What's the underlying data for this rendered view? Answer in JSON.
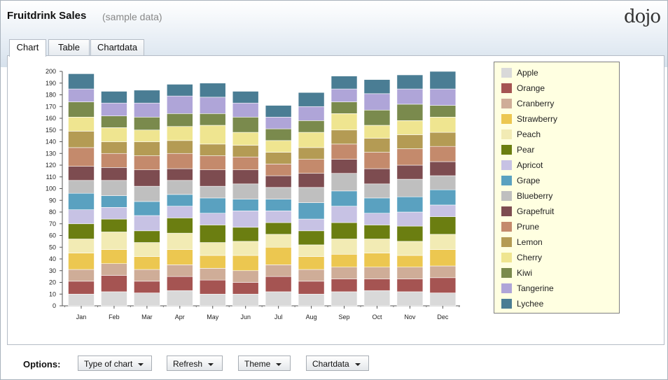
{
  "header": {
    "title": "Fruitdrink Sales",
    "subtitle": "(sample data)",
    "logo": "dojo"
  },
  "tabs": [
    {
      "label": "Chart",
      "active": true
    },
    {
      "label": "Table"
    },
    {
      "label": "Chartdata"
    }
  ],
  "options": {
    "label": "Options:",
    "buttons": [
      {
        "label": "Type of chart"
      },
      {
        "label": "Refresh"
      },
      {
        "label": "Theme"
      },
      {
        "label": "Chartdata"
      }
    ]
  },
  "chart_data": {
    "type": "bar",
    "stacked": true,
    "categories": [
      "Jan",
      "Feb",
      "Mar",
      "Apr",
      "May",
      "Jun",
      "Jul",
      "Aug",
      "Sep",
      "Oct",
      "Nov",
      "Dec"
    ],
    "ylim": [
      0,
      200
    ],
    "yticks": [
      0,
      10,
      20,
      30,
      40,
      50,
      60,
      70,
      80,
      90,
      100,
      110,
      120,
      130,
      140,
      150,
      160,
      170,
      180,
      190,
      200
    ],
    "legend_position": "right",
    "series": [
      {
        "name": "Apple",
        "color": "#d9d9d9",
        "values": [
          10,
          12,
          11,
          13,
          10,
          10,
          12,
          10,
          12,
          13,
          12,
          11
        ]
      },
      {
        "name": "Orange",
        "color": "#a55452",
        "values": [
          11,
          14,
          10,
          12,
          12,
          10,
          13,
          11,
          11,
          10,
          11,
          13
        ]
      },
      {
        "name": "Cranberry",
        "color": "#cfad98",
        "values": [
          10,
          10,
          10,
          10,
          10,
          10,
          10,
          10,
          10,
          10,
          10,
          10
        ]
      },
      {
        "name": "Strawberry",
        "color": "#ecc750",
        "values": [
          14,
          12,
          11,
          13,
          11,
          13,
          15,
          11,
          11,
          12,
          10,
          14
        ]
      },
      {
        "name": "Peach",
        "color": "#f2ebb4",
        "values": [
          12,
          15,
          12,
          14,
          11,
          12,
          11,
          10,
          13,
          12,
          12,
          13
        ]
      },
      {
        "name": "Pear",
        "color": "#6b7e11",
        "values": [
          13,
          11,
          10,
          13,
          15,
          12,
          10,
          12,
          14,
          12,
          13,
          15
        ]
      },
      {
        "name": "Apricot",
        "color": "#c7c2e4",
        "values": [
          12,
          10,
          13,
          10,
          10,
          14,
          10,
          10,
          14,
          10,
          12,
          10
        ]
      },
      {
        "name": "Grape",
        "color": "#5aa1c0",
        "values": [
          14,
          10,
          12,
          10,
          13,
          10,
          10,
          14,
          13,
          13,
          13,
          13
        ]
      },
      {
        "name": "Blueberry",
        "color": "#bfbfbf",
        "values": [
          11,
          13,
          13,
          12,
          10,
          13,
          10,
          13,
          15,
          12,
          15,
          12
        ]
      },
      {
        "name": "Grapefruit",
        "color": "#7d4c50",
        "values": [
          12,
          11,
          14,
          10,
          14,
          12,
          10,
          12,
          12,
          13,
          12,
          12
        ]
      },
      {
        "name": "Prune",
        "color": "#c48a6c",
        "values": [
          16,
          12,
          12,
          13,
          12,
          11,
          10,
          12,
          13,
          14,
          14,
          13
        ]
      },
      {
        "name": "Lemon",
        "color": "#b49b54",
        "values": [
          14,
          10,
          12,
          11,
          10,
          10,
          10,
          10,
          12,
          12,
          12,
          12
        ]
      },
      {
        "name": "Cherry",
        "color": "#efe590",
        "values": [
          12,
          12,
          10,
          12,
          16,
          11,
          10,
          13,
          14,
          11,
          12,
          13
        ]
      },
      {
        "name": "Kiwi",
        "color": "#7a8a4d",
        "values": [
          13,
          10,
          11,
          11,
          10,
          13,
          10,
          10,
          10,
          13,
          14,
          10
        ]
      },
      {
        "name": "Tangerine",
        "color": "#afa5d8",
        "values": [
          11,
          11,
          12,
          15,
          14,
          12,
          10,
          12,
          11,
          14,
          13,
          14
        ]
      },
      {
        "name": "Lychee",
        "color": "#4a7d94",
        "values": [
          13,
          10,
          11,
          10,
          12,
          10,
          10,
          12,
          11,
          12,
          12,
          15
        ]
      }
    ]
  }
}
